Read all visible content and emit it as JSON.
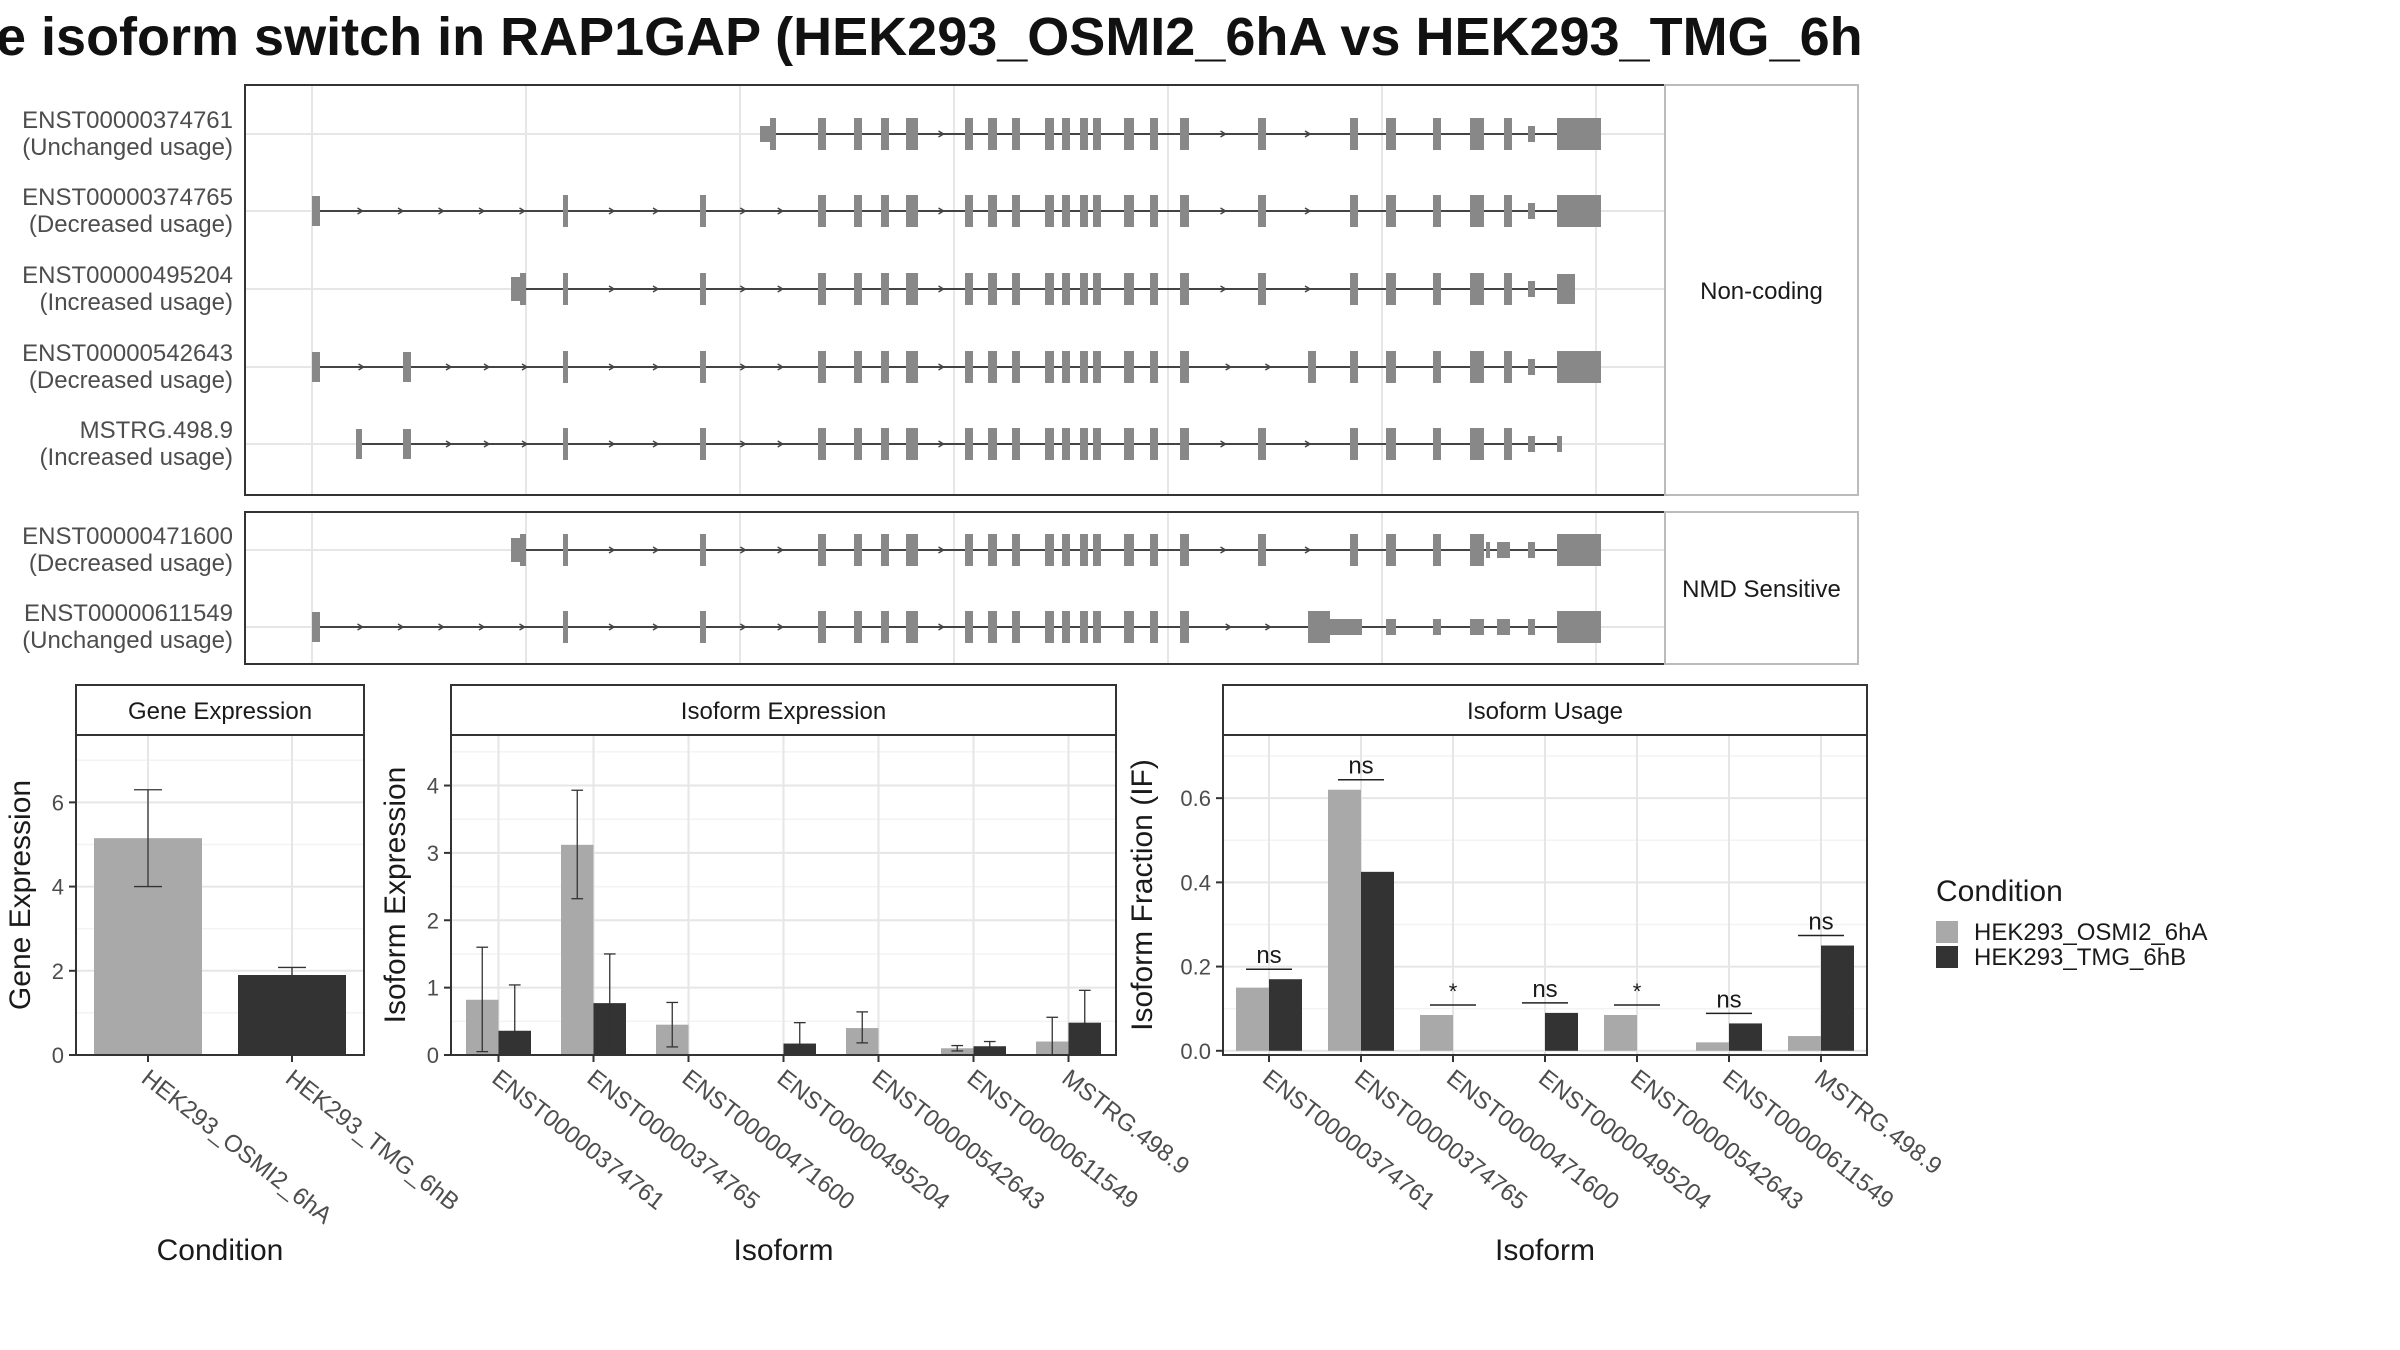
{
  "title": "e isoform switch in RAP1GAP (HEK293_OSMI2_6hA vs HEK293_TMG_6h",
  "colors": {
    "exon": "#888888",
    "osmi": "#a9a9a9",
    "tmg": "#333333",
    "panel_border": "#333333",
    "strip_border": "#bbbbbb",
    "grid_major": "#e6e6e6",
    "grid_minor": "#f3f3f3",
    "text": "#1a1a1a",
    "axis_text": "#4d4d4d"
  },
  "transcript_facets": [
    {
      "label": "Non-coding",
      "rows": [
        {
          "id": "ENST00000374761",
          "usage": "(Unchanged usage)"
        },
        {
          "id": "ENST00000374765",
          "usage": "(Decreased usage)"
        },
        {
          "id": "ENST00000495204",
          "usage": "(Increased usage)"
        },
        {
          "id": "ENST00000542643",
          "usage": "(Decreased usage)"
        },
        {
          "id": "MSTRG.498.9",
          "usage": "(Increased usage)"
        }
      ]
    },
    {
      "label": "NMD Sensitive",
      "rows": [
        {
          "id": "ENST00000471600",
          "usage": "(Decreased usage)"
        },
        {
          "id": "ENST00000611549",
          "usage": "(Unchanged usage)"
        }
      ]
    }
  ],
  "legend": {
    "title": "Condition",
    "items": [
      "HEK293_OSMI2_6hA",
      "HEK293_TMG_6hB"
    ]
  },
  "chart_data": [
    {
      "type": "bar",
      "title": "Gene Expression",
      "xlabel": "Condition",
      "ylabel": "Gene Expression",
      "ylim": [
        0,
        7.6
      ],
      "yticks": [
        0,
        2,
        4,
        6
      ],
      "categories": [
        "HEK293_OSMI2_6hA",
        "HEK293_TMG_6hB"
      ],
      "values": [
        5.15,
        1.9
      ],
      "errors": [
        [
          4.0,
          6.3
        ],
        [
          1.75,
          2.08
        ]
      ]
    },
    {
      "type": "bar",
      "title": "Isoform Expression",
      "xlabel": "Isoform",
      "ylabel": "Isoform Expression",
      "ylim": [
        0,
        4.75
      ],
      "yticks": [
        0,
        1,
        2,
        3,
        4
      ],
      "categories": [
        "ENST00000374761",
        "ENST00000374765",
        "ENST00000471600",
        "ENST00000495204",
        "ENST00000542643",
        "ENST00000611549",
        "MSTRG.498.9"
      ],
      "series": [
        {
          "name": "HEK293_OSMI2_6hA",
          "values": [
            0.82,
            3.12,
            0.45,
            0.0,
            0.4,
            0.1,
            0.2
          ],
          "errors": [
            [
              0.05,
              1.6
            ],
            [
              2.32,
              3.93
            ],
            [
              0.12,
              0.78
            ],
            null,
            [
              0.18,
              0.64
            ],
            [
              0.06,
              0.14
            ],
            [
              0.0,
              0.56
            ]
          ]
        },
        {
          "name": "HEK293_TMG_6hB",
          "values": [
            0.36,
            0.77,
            0.0,
            0.17,
            0.0,
            0.13,
            0.48
          ],
          "errors": [
            [
              0.0,
              1.04
            ],
            [
              0.05,
              1.5
            ],
            null,
            [
              0.0,
              0.48
            ],
            null,
            [
              0.06,
              0.2
            ],
            [
              0.0,
              0.96
            ]
          ]
        }
      ]
    },
    {
      "type": "bar",
      "title": "Isoform Usage",
      "xlabel": "Isoform",
      "ylabel": "Isoform Fraction (IF)",
      "ylim": [
        -0.01,
        0.75
      ],
      "yticks": [
        0.0,
        0.2,
        0.4,
        0.6
      ],
      "categories": [
        "ENST00000374761",
        "ENST00000374765",
        "ENST00000471600",
        "ENST00000495204",
        "ENST00000542643",
        "ENST00000611549",
        "MSTRG.498.9"
      ],
      "series": [
        {
          "name": "HEK293_OSMI2_6hA",
          "values": [
            0.15,
            0.62,
            0.085,
            0.0,
            0.085,
            0.02,
            0.035
          ]
        },
        {
          "name": "HEK293_TMG_6hB",
          "values": [
            0.17,
            0.425,
            0.0,
            0.09,
            0.0,
            0.065,
            0.25
          ]
        }
      ],
      "significance": [
        "ns",
        "ns",
        "*",
        "ns",
        "*",
        "ns",
        "ns"
      ]
    }
  ]
}
